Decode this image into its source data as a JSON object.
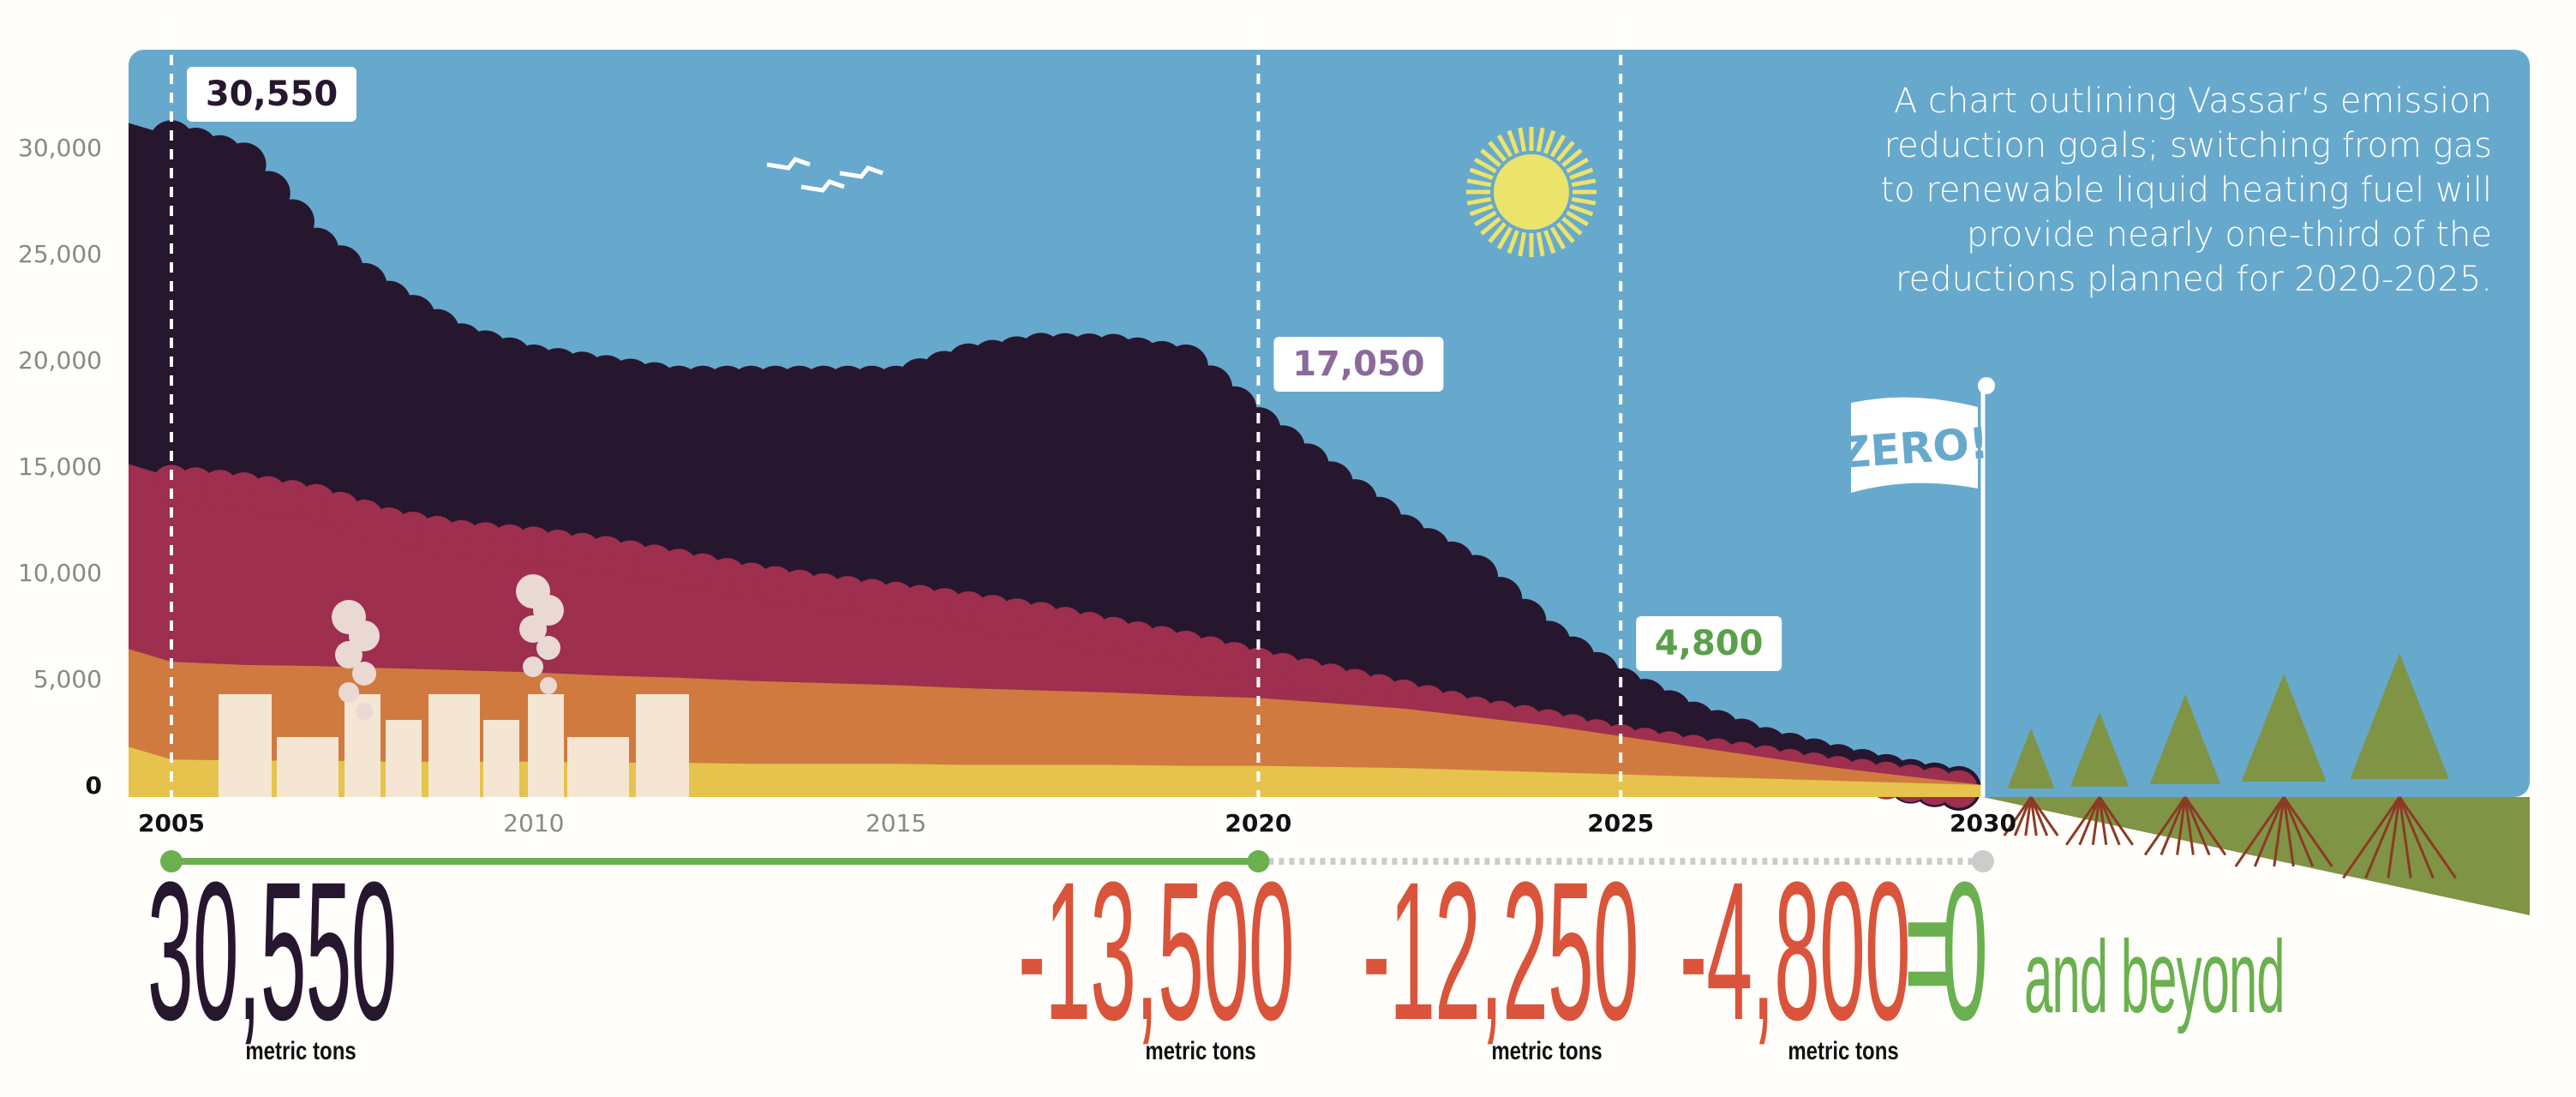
{
  "chart_data": {
    "type": "area",
    "stacked": true,
    "x": [
      2005,
      2006,
      2007,
      2008,
      2009,
      2010,
      2011,
      2012,
      2013,
      2014,
      2015,
      2016,
      2017,
      2018,
      2019,
      2020,
      2021,
      2022,
      2023,
      2024,
      2025,
      2026,
      2027,
      2028,
      2029,
      2030
    ],
    "series": [
      {
        "values": [
          1200,
          1150,
          1150,
          1100,
          1100,
          1100,
          1050,
          1050,
          1000,
          1000,
          1000,
          950,
          950,
          950,
          900,
          900,
          850,
          800,
          700,
          600,
          500,
          400,
          300,
          200,
          100,
          0
        ],
        "color": "#e6c34c"
      },
      {
        "values": [
          4600,
          4500,
          4450,
          4400,
          4300,
          4200,
          4100,
          4000,
          3900,
          3800,
          3700,
          3600,
          3500,
          3400,
          3300,
          3200,
          3000,
          2800,
          2500,
          2200,
          1800,
          1400,
          1000,
          600,
          300,
          0
        ],
        "color": "#d07a40"
      },
      {
        "values": [
          8700,
          8500,
          8000,
          7000,
          6500,
          6300,
          6000,
          5500,
          5000,
          4600,
          4300,
          4000,
          3600,
          3000,
          2500,
          1800,
          1300,
          800,
          400,
          200,
          0,
          0,
          0,
          0,
          0,
          0
        ],
        "color": "#9e2f4e"
      },
      {
        "values": [
          16050,
          15350,
          11900,
          10500,
          9100,
          8400,
          8350,
          8450,
          9100,
          9600,
          10000,
          11500,
          12500,
          13150,
          13300,
          11150,
          9350,
          7600,
          6500,
          4000,
          2500,
          1400,
          700,
          400,
          100,
          0
        ],
        "color": "#26172f"
      }
    ],
    "totals_labels": [
      {
        "year": 2005,
        "label": "30,550",
        "color": "#26172f"
      },
      {
        "year": 2020,
        "label": "17,050",
        "color": "#8a6a9a"
      },
      {
        "year": 2025,
        "label": "4,800",
        "color": "#5aa04a"
      }
    ],
    "ylim": [
      0,
      32000
    ],
    "yticks": [
      "0",
      "5,000",
      "10,000",
      "15,000",
      "20,000",
      "25,000",
      "30,000"
    ],
    "ytick_values": [
      0,
      5000,
      10000,
      15000,
      20000,
      25000,
      30000
    ],
    "xticks": [
      {
        "year": 2005,
        "label": "2005",
        "bold": true
      },
      {
        "year": 2010,
        "label": "2010",
        "bold": false
      },
      {
        "year": 2015,
        "label": "2015",
        "bold": false
      },
      {
        "year": 2020,
        "label": "2020",
        "bold": true
      },
      {
        "year": 2025,
        "label": "2025",
        "bold": true
      },
      {
        "year": 2030,
        "label": "2030",
        "bold": true
      }
    ],
    "markers": [
      2005,
      2020,
      2025
    ],
    "grid": false
  },
  "annotation": [
    "A chart outlining Vassar’s emission",
    "reduction goals; switching from gas",
    "to renewable liquid heating fuel will",
    "provide nearly one-third of the",
    "reductions planned for 2020-2025."
  ],
  "flag_text": "ZERO!",
  "summary": {
    "start": "30,550",
    "step1": "-13,500",
    "step2": "-12,250",
    "step3": "-4,800",
    "equals": "=",
    "end": "0",
    "end_suffix": "and beyond",
    "unit": "metric tons"
  },
  "colors": {
    "sky": "#67a9cd",
    "ground": "#7f9445",
    "green": "#6ab04f",
    "red": "#d9543a",
    "dark": "#26172f"
  }
}
